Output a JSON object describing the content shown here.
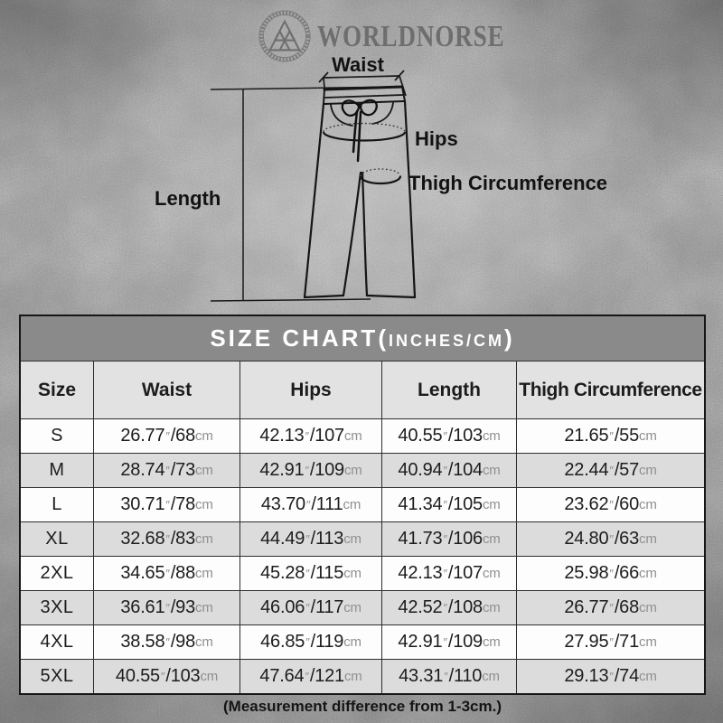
{
  "brand": {
    "name": "WORLDNORSE",
    "logo": "valknut-icon"
  },
  "diagram": {
    "labels": {
      "waist": "Waist",
      "hips": "Hips",
      "thigh": "Thigh Circumference",
      "length": "Length"
    }
  },
  "size_chart": {
    "title": {
      "main": "SIZE CHART(",
      "sub": "INCHES/CM",
      "close": ")"
    },
    "columns": [
      "Size",
      "Waist",
      "Hips",
      "Length",
      "Thigh Circumference"
    ],
    "units": {
      "inch_mark": "″",
      "cm": "cm"
    },
    "rows": [
      {
        "size": "S",
        "waist": [
          "26.77",
          "68"
        ],
        "hips": [
          "42.13",
          "107"
        ],
        "length": [
          "40.55",
          "103"
        ],
        "thigh": [
          "21.65",
          "55"
        ]
      },
      {
        "size": "M",
        "waist": [
          "28.74",
          "73"
        ],
        "hips": [
          "42.91",
          "109"
        ],
        "length": [
          "40.94",
          "104"
        ],
        "thigh": [
          "22.44",
          "57"
        ]
      },
      {
        "size": "L",
        "waist": [
          "30.71",
          "78"
        ],
        "hips": [
          "43.70",
          "111"
        ],
        "length": [
          "41.34",
          "105"
        ],
        "thigh": [
          "23.62",
          "60"
        ]
      },
      {
        "size": "XL",
        "waist": [
          "32.68",
          "83"
        ],
        "hips": [
          "44.49",
          "113"
        ],
        "length": [
          "41.73",
          "106"
        ],
        "thigh": [
          "24.80",
          "63"
        ]
      },
      {
        "size": "2XL",
        "waist": [
          "34.65",
          "88"
        ],
        "hips": [
          "45.28",
          "115"
        ],
        "length": [
          "42.13",
          "107"
        ],
        "thigh": [
          "25.98",
          "66"
        ]
      },
      {
        "size": "3XL",
        "waist": [
          "36.61",
          "93"
        ],
        "hips": [
          "46.06",
          "117"
        ],
        "length": [
          "42.52",
          "108"
        ],
        "thigh": [
          "26.77",
          "68"
        ]
      },
      {
        "size": "4XL",
        "waist": [
          "38.58",
          "98"
        ],
        "hips": [
          "46.85",
          "119"
        ],
        "length": [
          "42.91",
          "109"
        ],
        "thigh": [
          "27.95",
          "71"
        ]
      },
      {
        "size": "5XL",
        "waist": [
          "40.55",
          "103"
        ],
        "hips": [
          "47.64",
          "121"
        ],
        "length": [
          "43.31",
          "110"
        ],
        "thigh": [
          "29.13",
          "74"
        ]
      }
    ],
    "footnote": "(Measurement difference from 1-3cm.)"
  },
  "colors": {
    "page_bg": "#c7c7c7",
    "title_bar_bg": "#8a8a8a",
    "title_text": "#ffffff",
    "header_row_bg": "#e2e2e2",
    "row_bg": "#fdfdfd",
    "row_alt_bg": "#dcdcdc",
    "grid_line": "#2e2e2e",
    "table_border": "#161616",
    "text_primary": "#1c1c1c",
    "unit_text": "#8f8f8f",
    "brand_text": "#6e6e6e",
    "line_art": "#1a1a1a"
  }
}
